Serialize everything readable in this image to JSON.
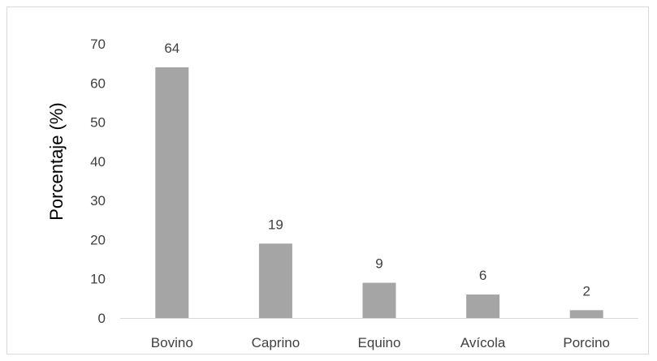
{
  "chart_data": {
    "type": "bar",
    "categories": [
      "Bovino",
      "Caprino",
      "Equino",
      "Avícola",
      "Porcino"
    ],
    "values": [
      64,
      19,
      9,
      6,
      2
    ],
    "data_labels": [
      "64",
      "19",
      "9",
      "6",
      "2"
    ],
    "title": "",
    "xlabel": "",
    "ylabel": "Porcentaje (%)",
    "ylim": [
      0,
      70
    ],
    "yticks": [
      0,
      10,
      20,
      30,
      40,
      50,
      60,
      70
    ],
    "grid": false,
    "legend": "none",
    "bar_color": "#a5a5a5",
    "axis_color": "#d9d9d9"
  }
}
